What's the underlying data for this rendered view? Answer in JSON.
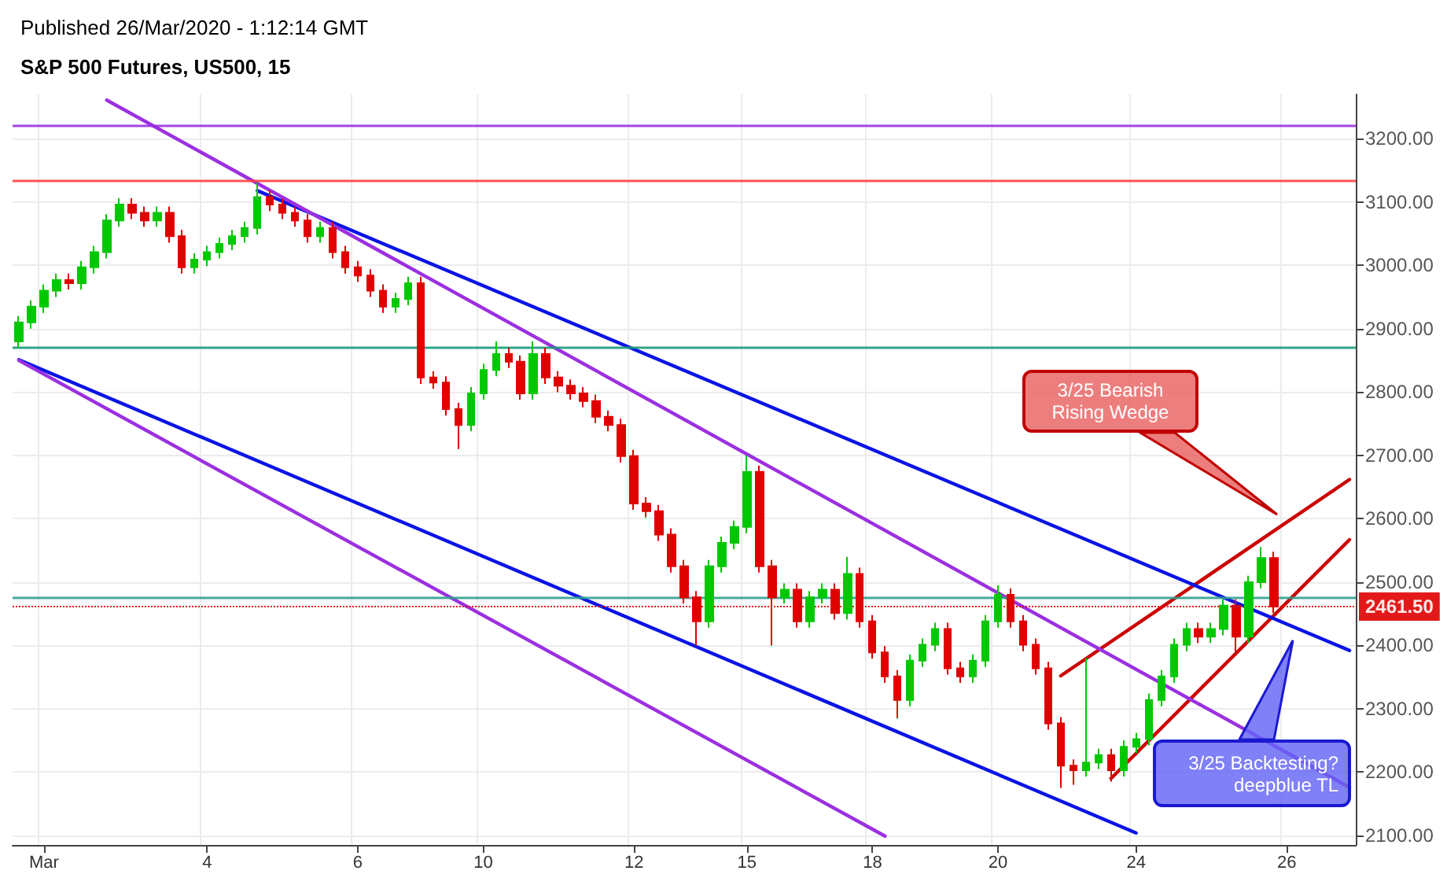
{
  "chart_data": {
    "type": "candlestick",
    "title": "S&P 500 Futures, US500, 15",
    "subtitle": "Published 26/Mar/2020 - 1:12:14 GMT",
    "categories": [
      null,
      null,
      "Mar",
      null,
      null,
      null,
      null,
      null,
      null,
      null,
      null,
      null,
      null,
      null,
      null,
      "4",
      null,
      null,
      null,
      null,
      null,
      null,
      null,
      null,
      null,
      null,
      null,
      "6",
      null,
      null,
      null,
      null,
      null,
      null,
      null,
      null,
      null,
      "10",
      null,
      null,
      null,
      null,
      null,
      null,
      null,
      null,
      null,
      null,
      null,
      "12",
      null,
      null,
      null,
      null,
      null,
      null,
      null,
      null,
      "15",
      null,
      null,
      null,
      null,
      null,
      null,
      null,
      null,
      null,
      "18",
      null,
      null,
      null,
      null,
      null,
      null,
      null,
      null,
      null,
      "20",
      null,
      null,
      null,
      null,
      null,
      null,
      null,
      null,
      null,
      null,
      "24",
      null,
      null,
      null,
      null,
      null,
      null,
      null,
      null,
      null,
      null,
      null,
      "26",
      null,
      null,
      null,
      null,
      null
    ],
    "colors": [
      "#00c800",
      "#00c800",
      "#00c800",
      "#00c800",
      "#e00000",
      "#00c800",
      "#00c800",
      "#00c800",
      "#00c800",
      "#e00000",
      "#e00000",
      "#00c800",
      "#e00000",
      "#e00000",
      "#00c800",
      "#00c800",
      "#00c800",
      "#00c800",
      "#00c800",
      "#00c800",
      "#e00000",
      "#e00000",
      "#e00000",
      "#e00000",
      "#00c800",
      "#e00000",
      "#e00000",
      "#e00000",
      "#e00000",
      "#e00000",
      "#00c800",
      "#00c800",
      "#e00000",
      "#e00000",
      "#e00000",
      "#e00000",
      "#00c800",
      "#00c800",
      "#00c800",
      "#e00000",
      "#e00000",
      "#00c800",
      "#e00000",
      "#e00000",
      "#e00000",
      "#e00000",
      "#e00000",
      "#e00000",
      "#e00000",
      "#e00000",
      "#e00000",
      "#e00000",
      "#e00000",
      "#e00000",
      "#e00000",
      "#00c800",
      "#00c800",
      "#00c800",
      "#00c800",
      "#e00000",
      "#e00000",
      "#00c800",
      "#e00000",
      "#00c800",
      "#00c800",
      "#e00000",
      "#00c800",
      "#e00000",
      "#e00000",
      "#e00000",
      "#e00000",
      "#00c800",
      "#00c800",
      "#00c800",
      "#e00000",
      "#e00000",
      "#00c800",
      "#00c800",
      "#00c800",
      "#e00000",
      "#e00000",
      "#e00000",
      "#e00000",
      "#e00000",
      "#e00000",
      "#00c800",
      "#00c800",
      "#e00000",
      "#00c800",
      "#00c800",
      "#00c800",
      "#00c800",
      "#00c800",
      "#00c800",
      "#e00000",
      "#00c800",
      "#00c800",
      "#e00000",
      "#00c800",
      "#00c800",
      "#e00000",
      null,
      null,
      null,
      null,
      null,
      null
    ],
    "ohlc": [
      [
        2880,
        2920,
        2870,
        2910
      ],
      [
        2910,
        2945,
        2900,
        2935
      ],
      [
        2935,
        2970,
        2925,
        2960
      ],
      [
        2960,
        2987,
        2950,
        2977
      ],
      [
        2977,
        2987,
        2962,
        2972
      ],
      [
        2972,
        3007,
        2962,
        2997
      ],
      [
        2997,
        3031,
        2987,
        3021
      ],
      [
        3021,
        3081,
        3011,
        3071
      ],
      [
        3071,
        3106,
        3061,
        3096
      ],
      [
        3096,
        3106,
        3073,
        3083
      ],
      [
        3083,
        3093,
        3061,
        3071
      ],
      [
        3071,
        3093,
        3061,
        3083
      ],
      [
        3083,
        3093,
        3036,
        3046
      ],
      [
        3046,
        3056,
        2987,
        2997
      ],
      [
        2997,
        3019,
        2987,
        3009
      ],
      [
        3009,
        3031,
        2999,
        3021
      ],
      [
        3021,
        3044,
        3011,
        3034
      ],
      [
        3034,
        3056,
        3024,
        3046
      ],
      [
        3046,
        3069,
        3036,
        3059
      ],
      [
        3059,
        3130,
        3049,
        3108
      ],
      [
        3108,
        3118,
        3086,
        3096
      ],
      [
        3096,
        3106,
        3073,
        3083
      ],
      [
        3083,
        3093,
        3061,
        3071
      ],
      [
        3071,
        3081,
        3036,
        3046
      ],
      [
        3046,
        3069,
        3036,
        3059
      ],
      [
        3059,
        3069,
        3011,
        3021
      ],
      [
        3021,
        3031,
        2987,
        2997
      ],
      [
        2997,
        3007,
        2974,
        2984
      ],
      [
        2984,
        2994,
        2950,
        2960
      ],
      [
        2960,
        2970,
        2925,
        2935
      ],
      [
        2935,
        2957,
        2925,
        2947
      ],
      [
        2947,
        2982,
        2937,
        2972
      ],
      [
        2972,
        2982,
        2813,
        2823
      ],
      [
        2823,
        2833,
        2805,
        2815
      ],
      [
        2815,
        2825,
        2763,
        2773
      ],
      [
        2773,
        2783,
        2710,
        2748
      ],
      [
        2748,
        2808,
        2738,
        2798
      ],
      [
        2798,
        2845,
        2788,
        2835
      ],
      [
        2835,
        2880,
        2825,
        2860
      ],
      [
        2860,
        2870,
        2838,
        2848
      ],
      [
        2848,
        2858,
        2788,
        2798
      ],
      [
        2798,
        2880,
        2788,
        2860
      ],
      [
        2860,
        2870,
        2813,
        2823
      ],
      [
        2823,
        2833,
        2800,
        2810
      ],
      [
        2810,
        2820,
        2788,
        2798
      ],
      [
        2798,
        2808,
        2776,
        2786
      ],
      [
        2786,
        2796,
        2751,
        2761
      ],
      [
        2761,
        2771,
        2738,
        2748
      ],
      [
        2748,
        2758,
        2689,
        2699
      ],
      [
        2699,
        2709,
        2614,
        2624
      ],
      [
        2624,
        2634,
        2602,
        2612
      ],
      [
        2612,
        2622,
        2565,
        2575
      ],
      [
        2575,
        2585,
        2515,
        2525
      ],
      [
        2525,
        2535,
        2466,
        2476
      ],
      [
        2476,
        2486,
        2400,
        2438
      ],
      [
        2438,
        2535,
        2428,
        2525
      ],
      [
        2525,
        2572,
        2515,
        2562
      ],
      [
        2562,
        2597,
        2552,
        2587
      ],
      [
        2587,
        2700,
        2577,
        2674
      ],
      [
        2674,
        2684,
        2515,
        2525
      ],
      [
        2525,
        2535,
        2400,
        2476
      ],
      [
        2476,
        2498,
        2466,
        2488
      ],
      [
        2488,
        2498,
        2428,
        2438
      ],
      [
        2438,
        2486,
        2428,
        2476
      ],
      [
        2476,
        2498,
        2466,
        2488
      ],
      [
        2488,
        2498,
        2441,
        2451
      ],
      [
        2451,
        2540,
        2441,
        2513
      ],
      [
        2513,
        2523,
        2428,
        2438
      ],
      [
        2438,
        2448,
        2379,
        2389
      ],
      [
        2389,
        2399,
        2341,
        2351
      ],
      [
        2351,
        2361,
        2285,
        2314
      ],
      [
        2314,
        2386,
        2304,
        2376
      ],
      [
        2376,
        2411,
        2366,
        2401
      ],
      [
        2401,
        2436,
        2391,
        2426
      ],
      [
        2426,
        2436,
        2354,
        2364
      ],
      [
        2364,
        2374,
        2341,
        2351
      ],
      [
        2351,
        2386,
        2341,
        2376
      ],
      [
        2376,
        2448,
        2366,
        2438
      ],
      [
        2438,
        2495,
        2428,
        2480
      ],
      [
        2480,
        2490,
        2428,
        2438
      ],
      [
        2438,
        2448,
        2391,
        2401
      ],
      [
        2401,
        2411,
        2354,
        2364
      ],
      [
        2364,
        2374,
        2267,
        2277
      ],
      [
        2277,
        2287,
        2175,
        2210
      ],
      [
        2210,
        2220,
        2180,
        2203
      ],
      [
        2203,
        2380,
        2193,
        2215
      ],
      [
        2215,
        2237,
        2205,
        2227
      ],
      [
        2227,
        2237,
        2185,
        2203
      ],
      [
        2203,
        2250,
        2193,
        2240
      ],
      [
        2240,
        2262,
        2230,
        2252
      ],
      [
        2252,
        2324,
        2242,
        2314
      ],
      [
        2314,
        2361,
        2304,
        2351
      ],
      [
        2351,
        2411,
        2341,
        2401
      ],
      [
        2401,
        2436,
        2391,
        2426
      ],
      [
        2426,
        2436,
        2404,
        2414
      ],
      [
        2414,
        2436,
        2404,
        2426
      ],
      [
        2426,
        2473,
        2416,
        2463
      ],
      [
        2463,
        2473,
        2390,
        2414
      ],
      [
        2414,
        2510,
        2404,
        2500
      ],
      [
        2500,
        2555,
        2490,
        2538
      ],
      [
        2538,
        2548,
        2451,
        2461.5
      ],
      null,
      null,
      null,
      null,
      null,
      null
    ],
    "series": [
      {
        "type": "line",
        "color": "#cc0000",
        "values": [
          null,
          null,
          null,
          null,
          null,
          null,
          null,
          null,
          null,
          null,
          null,
          null,
          null,
          null,
          null,
          null,
          null,
          null,
          null,
          null,
          null,
          null,
          null,
          null,
          null,
          null,
          null,
          null,
          null,
          null,
          null,
          null,
          null,
          null,
          null,
          null,
          null,
          null,
          null,
          null,
          null,
          null,
          null,
          null,
          null,
          null,
          null,
          null,
          null,
          null,
          null,
          null,
          null,
          null,
          null,
          null,
          null,
          null,
          null,
          null,
          null,
          null,
          null,
          null,
          null,
          null,
          null,
          null,
          null,
          null,
          null,
          null,
          null,
          null,
          null,
          null,
          null,
          null,
          null,
          null,
          null,
          null,
          null,
          2352,
          null,
          null,
          null,
          null,
          null,
          null,
          null,
          null,
          null,
          null,
          null,
          null,
          null,
          null,
          null,
          null,
          null,
          null,
          null,
          null,
          null,
          null,
          2662
        ]
      },
      {
        "type": "line",
        "color": "#cc0000",
        "values": [
          null,
          null,
          null,
          null,
          null,
          null,
          null,
          null,
          null,
          null,
          null,
          null,
          null,
          null,
          null,
          null,
          null,
          null,
          null,
          null,
          null,
          null,
          null,
          null,
          null,
          null,
          null,
          null,
          null,
          null,
          null,
          null,
          null,
          null,
          null,
          null,
          null,
          null,
          null,
          null,
          null,
          null,
          null,
          null,
          null,
          null,
          null,
          null,
          null,
          null,
          null,
          null,
          null,
          null,
          null,
          null,
          null,
          null,
          null,
          null,
          null,
          null,
          null,
          null,
          null,
          null,
          null,
          null,
          null,
          null,
          null,
          null,
          null,
          null,
          null,
          null,
          null,
          null,
          null,
          null,
          null,
          null,
          null,
          null,
          null,
          null,
          null,
          2190,
          null,
          null,
          null,
          null,
          null,
          null,
          null,
          null,
          null,
          null,
          null,
          null,
          null,
          null,
          null,
          null,
          null,
          null,
          2567
        ]
      },
      {
        "type": "line",
        "color": "#0a14e6",
        "values": [
          null,
          null,
          null,
          null,
          null,
          null,
          null,
          null,
          null,
          null,
          null,
          null,
          null,
          null,
          null,
          null,
          null,
          null,
          null,
          3118,
          null,
          null,
          null,
          null,
          null,
          null,
          null,
          null,
          null,
          null,
          null,
          null,
          null,
          null,
          null,
          null,
          null,
          null,
          null,
          null,
          null,
          null,
          null,
          null,
          null,
          null,
          null,
          null,
          null,
          null,
          null,
          null,
          null,
          null,
          null,
          null,
          null,
          null,
          null,
          null,
          null,
          null,
          null,
          null,
          null,
          null,
          null,
          null,
          null,
          null,
          null,
          null,
          null,
          null,
          null,
          null,
          null,
          null,
          null,
          null,
          null,
          null,
          null,
          null,
          null,
          null,
          null,
          null,
          null,
          null,
          null,
          null,
          null,
          null,
          null,
          null,
          null,
          null,
          null,
          null,
          null,
          null,
          null,
          null,
          null,
          null,
          2392
        ]
      },
      {
        "type": "line",
        "color": "#0a14e6",
        "values": [
          2851,
          null,
          null,
          null,
          null,
          null,
          null,
          null,
          null,
          null,
          null,
          null,
          null,
          null,
          null,
          null,
          null,
          null,
          null,
          null,
          null,
          null,
          null,
          null,
          null,
          null,
          null,
          null,
          null,
          null,
          null,
          null,
          null,
          null,
          null,
          null,
          null,
          null,
          null,
          null,
          null,
          null,
          null,
          null,
          null,
          null,
          null,
          null,
          null,
          null,
          null,
          null,
          null,
          null,
          null,
          null,
          null,
          null,
          null,
          null,
          null,
          null,
          null,
          null,
          null,
          null,
          null,
          null,
          null,
          null,
          null,
          null,
          null,
          null,
          null,
          null,
          null,
          null,
          null,
          null,
          null,
          null,
          null,
          null,
          null,
          null,
          null,
          null,
          null,
          2104,
          null,
          null,
          null,
          null,
          null,
          null,
          null,
          null,
          null,
          null,
          null,
          null,
          null,
          null,
          null,
          null,
          null
        ]
      },
      {
        "type": "line",
        "color": "#9b30e0",
        "values": [
          null,
          null,
          null,
          null,
          null,
          null,
          null,
          3261,
          null,
          null,
          null,
          null,
          null,
          null,
          null,
          null,
          null,
          null,
          null,
          null,
          null,
          null,
          null,
          null,
          null,
          null,
          null,
          null,
          null,
          null,
          null,
          null,
          null,
          null,
          null,
          null,
          null,
          null,
          null,
          null,
          null,
          null,
          null,
          null,
          null,
          null,
          null,
          null,
          null,
          null,
          null,
          null,
          null,
          null,
          null,
          null,
          null,
          null,
          null,
          null,
          null,
          null,
          null,
          null,
          null,
          null,
          null,
          null,
          null,
          null,
          null,
          null,
          null,
          null,
          null,
          null,
          null,
          null,
          null,
          null,
          null,
          null,
          null,
          null,
          null,
          null,
          null,
          null,
          null,
          null,
          null,
          null,
          null,
          null,
          null,
          null,
          null,
          null,
          null,
          null,
          null,
          null,
          null,
          null,
          null,
          null,
          2176
        ]
      },
      {
        "type": "line",
        "color": "#9b30e0",
        "values": [
          2850,
          null,
          null,
          null,
          null,
          null,
          null,
          null,
          null,
          null,
          null,
          null,
          null,
          null,
          null,
          null,
          null,
          null,
          null,
          null,
          null,
          null,
          null,
          null,
          null,
          null,
          null,
          null,
          null,
          null,
          null,
          null,
          null,
          null,
          null,
          null,
          null,
          null,
          null,
          null,
          null,
          null,
          null,
          null,
          null,
          null,
          null,
          null,
          null,
          null,
          null,
          null,
          null,
          null,
          null,
          null,
          null,
          null,
          null,
          null,
          null,
          null,
          null,
          null,
          null,
          null,
          null,
          null,
          null,
          2099,
          null,
          null,
          null,
          null,
          null,
          null,
          null,
          null,
          null,
          null,
          null,
          null,
          null,
          null,
          null,
          null,
          null,
          null,
          null,
          null,
          null,
          null,
          null,
          null,
          null,
          null,
          null,
          null,
          null,
          null,
          null,
          null,
          null,
          null,
          null,
          null,
          null
        ]
      }
    ],
    "ylim": [
      2085,
      3270
    ],
    "yticks": [
      {
        "value": 2100,
        "label": "2100.00"
      },
      {
        "value": 2200,
        "label": "2200.00"
      },
      {
        "value": 2300,
        "label": "2300.00"
      },
      {
        "value": 2400,
        "label": "2400.00"
      },
      {
        "value": 2500,
        "label": "2500.00"
      },
      {
        "value": 2600,
        "label": "2600.00"
      },
      {
        "value": 2700,
        "label": "2700.00"
      },
      {
        "value": 2800,
        "label": "2800.00"
      },
      {
        "value": 2900,
        "label": "2900.00"
      },
      {
        "value": 3000,
        "label": "3000.00"
      },
      {
        "value": 3100,
        "label": "3100.00"
      },
      {
        "value": 3200,
        "label": "3200.00"
      }
    ],
    "ref_lines": [
      {
        "axis": "y",
        "value": 3222,
        "color": "#9b30e0"
      },
      {
        "axis": "y",
        "value": 3135,
        "color": "#ff4040"
      },
      {
        "axis": "y",
        "value": 2870,
        "color": "#1a9a7a"
      },
      {
        "axis": "y",
        "value": 2475,
        "color": "#30a090"
      },
      {
        "axis": "y",
        "value": 2461.5,
        "label": "2461.50",
        "color": "#e00000",
        "line_style": "dotted"
      }
    ],
    "annotations": [
      "3/25 Bearish Rising Wedge",
      "3/25 Backtesting? deepblue TL"
    ],
    "grid": true
  }
}
